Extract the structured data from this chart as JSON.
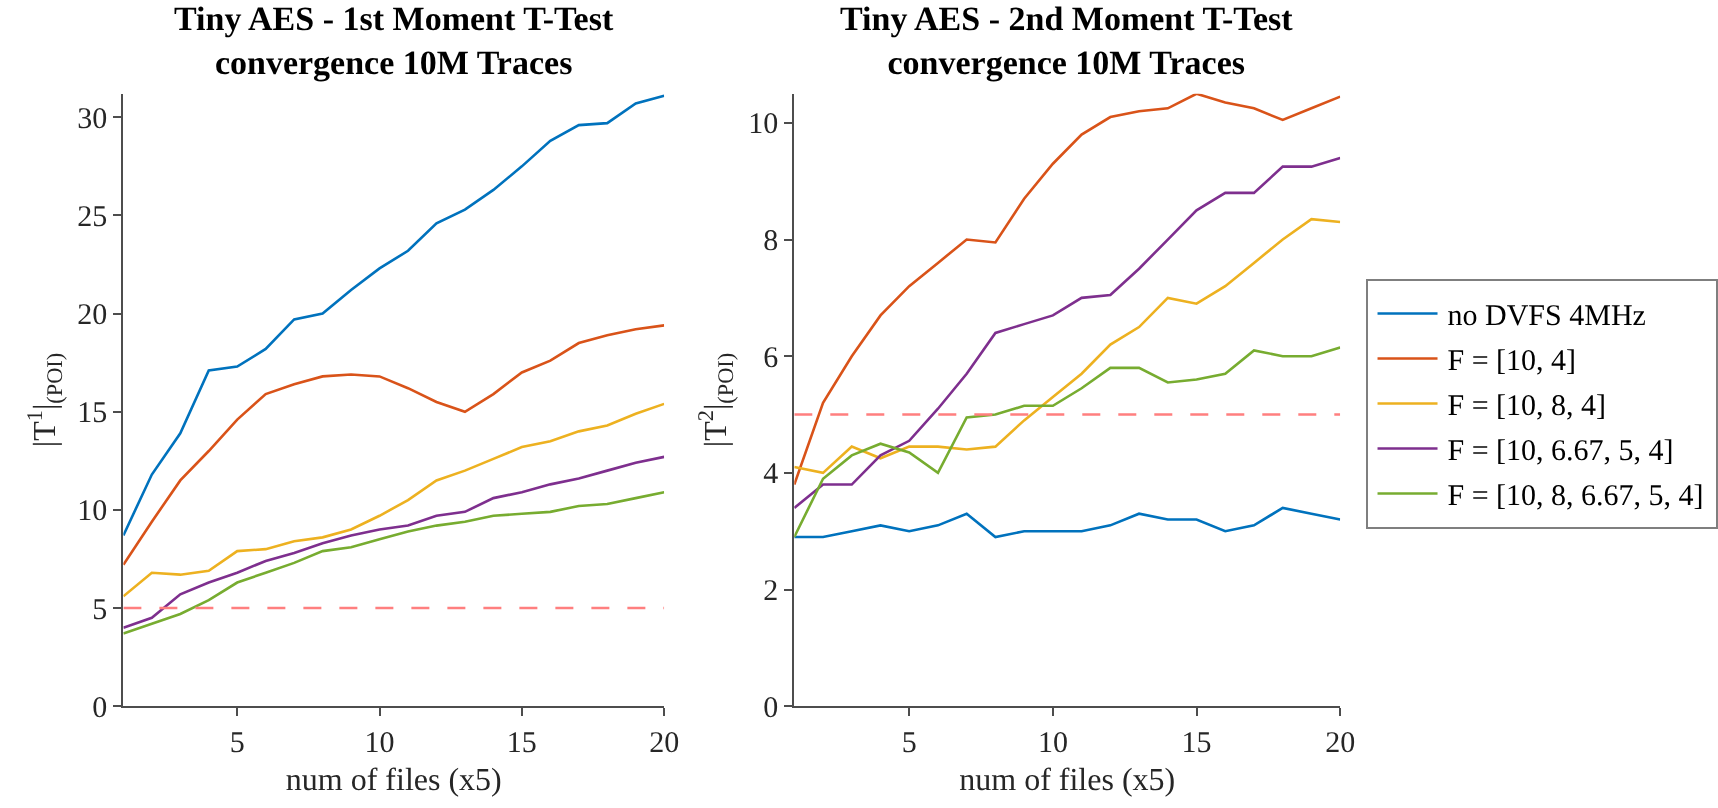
{
  "chart_data": [
    {
      "type": "line",
      "title": "Tiny AES - 1st Moment T-Test\nconvergence 10M Traces",
      "xlabel": "num of files (x5)",
      "ylabel": "|T$^{1}$|$_{(POI)}$",
      "x": [
        1,
        2,
        3,
        4,
        5,
        6,
        7,
        8,
        9,
        10,
        11,
        12,
        13,
        14,
        15,
        16,
        17,
        18,
        19,
        20
      ],
      "xlim": [
        1,
        20
      ],
      "xticks": [
        5,
        10,
        15,
        20
      ],
      "ylim": [
        0,
        31.2
      ],
      "yticks": [
        0,
        5,
        10,
        15,
        20,
        25,
        30
      ],
      "ref_lines": [
        {
          "axis": "y",
          "value": 5,
          "color": "#ff7f7f",
          "line_style": "dashed"
        }
      ],
      "series": [
        {
          "color": "#0072bd",
          "values": [
            8.7,
            11.8,
            13.9,
            17.1,
            17.3,
            18.2,
            19.7,
            20.0,
            21.2,
            22.3,
            23.2,
            24.6,
            25.3,
            26.3,
            27.5,
            28.8,
            29.6,
            29.7,
            30.7,
            31.1
          ]
        },
        {
          "color": "#d95319",
          "values": [
            7.2,
            9.4,
            11.5,
            13.0,
            14.6,
            15.9,
            16.4,
            16.8,
            16.9,
            16.8,
            16.2,
            15.5,
            15.0,
            15.9,
            17.0,
            17.6,
            18.5,
            18.9,
            19.2,
            19.4
          ]
        },
        {
          "color": "#edb120",
          "values": [
            5.6,
            6.8,
            6.7,
            6.9,
            7.9,
            8.0,
            8.4,
            8.6,
            9.0,
            9.7,
            10.5,
            11.5,
            12.0,
            12.6,
            13.2,
            13.5,
            14.0,
            14.3,
            14.9,
            15.4
          ]
        },
        {
          "color": "#7e2f8e",
          "values": [
            4.0,
            4.5,
            5.7,
            6.3,
            6.8,
            7.4,
            7.8,
            8.3,
            8.7,
            9.0,
            9.2,
            9.7,
            9.9,
            10.6,
            10.9,
            11.3,
            11.6,
            12.0,
            12.4,
            12.7
          ]
        },
        {
          "color": "#77ac30",
          "values": [
            3.7,
            4.2,
            4.7,
            5.4,
            6.3,
            6.8,
            7.3,
            7.9,
            8.1,
            8.5,
            8.9,
            9.2,
            9.4,
            9.7,
            9.8,
            9.9,
            10.2,
            10.3,
            10.6,
            10.9
          ]
        }
      ]
    },
    {
      "type": "line",
      "title": "Tiny AES - 2nd Moment T-Test\nconvergence 10M Traces",
      "xlabel": "num of files (x5)",
      "ylabel": "|T$^{2}$|$_{(POI)}$",
      "x": [
        1,
        2,
        3,
        4,
        5,
        6,
        7,
        8,
        9,
        10,
        11,
        12,
        13,
        14,
        15,
        16,
        17,
        18,
        19,
        20
      ],
      "xlim": [
        1,
        20
      ],
      "xticks": [
        5,
        10,
        15,
        20
      ],
      "ylim": [
        0,
        10.5
      ],
      "yticks": [
        0,
        2,
        4,
        6,
        8,
        10
      ],
      "legend": "right",
      "ref_lines": [
        {
          "axis": "y",
          "value": 5,
          "color": "#ff7f7f",
          "line_style": "dashed"
        }
      ],
      "series": [
        {
          "name": "no DVFS 4MHz",
          "color": "#0072bd",
          "values": [
            2.9,
            2.9,
            3.0,
            3.1,
            3.0,
            3.1,
            3.3,
            2.9,
            3.0,
            3.0,
            3.0,
            3.1,
            3.3,
            3.2,
            3.2,
            3.0,
            3.1,
            3.4,
            3.3,
            3.2
          ]
        },
        {
          "name": "F = [10, 4]",
          "color": "#d95319",
          "values": [
            3.8,
            5.2,
            6.0,
            6.7,
            7.2,
            7.6,
            8.0,
            7.95,
            8.7,
            9.3,
            9.8,
            10.1,
            10.2,
            10.25,
            10.5,
            10.35,
            10.25,
            10.05,
            10.25,
            10.45
          ]
        },
        {
          "name": "F = [10, 8, 4]",
          "color": "#edb120",
          "values": [
            4.1,
            4.0,
            4.45,
            4.25,
            4.45,
            4.45,
            4.4,
            4.45,
            4.9,
            5.3,
            5.7,
            6.2,
            6.5,
            7.0,
            6.9,
            7.2,
            7.6,
            8.0,
            8.35,
            8.3
          ]
        },
        {
          "name": "F = [10, 6.67, 5, 4]",
          "color": "#7e2f8e",
          "values": [
            3.4,
            3.8,
            3.8,
            4.3,
            4.55,
            5.1,
            5.7,
            6.4,
            6.55,
            6.7,
            7.0,
            7.05,
            7.5,
            8.0,
            8.5,
            8.8,
            8.8,
            9.25,
            9.25,
            9.4
          ]
        },
        {
          "name": "F = [10, 8, 6.67, 5, 4]",
          "color": "#77ac30",
          "values": [
            2.9,
            3.9,
            4.3,
            4.5,
            4.35,
            4.0,
            4.95,
            5.0,
            5.15,
            5.15,
            5.45,
            5.8,
            5.8,
            5.55,
            5.6,
            5.7,
            6.1,
            6.0,
            6.0,
            6.15
          ]
        }
      ]
    }
  ]
}
